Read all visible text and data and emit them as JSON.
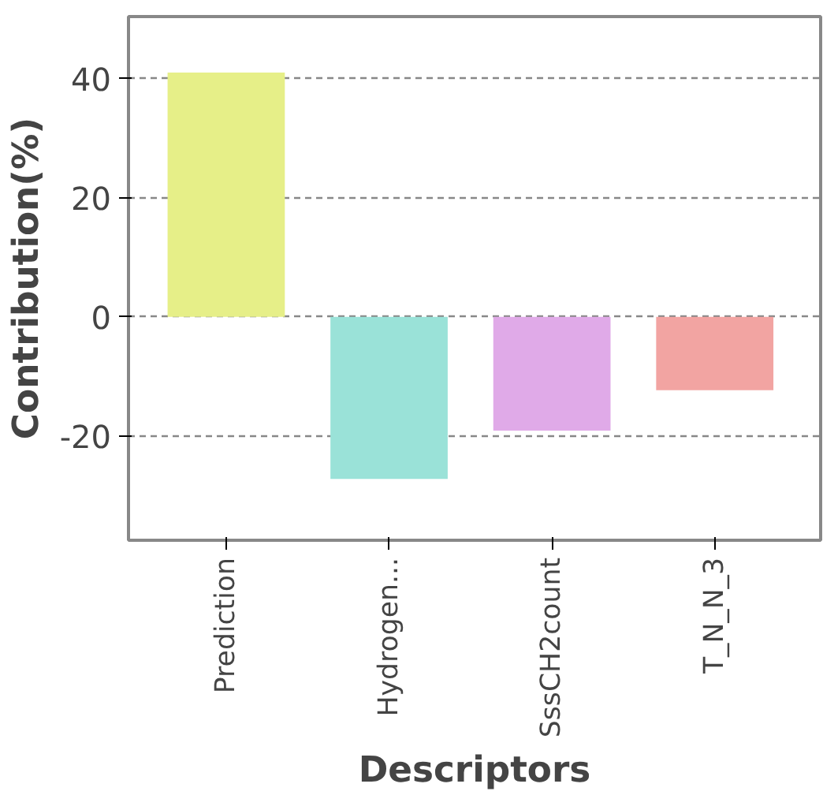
{
  "chart_data": {
    "type": "bar",
    "xlabel": "Descriptors",
    "ylabel": "Contribution(%)",
    "categories": [
      "Prediction",
      "Hydrogen...",
      "SssCH2count",
      "T_N_N_3"
    ],
    "values": [
      41,
      -27.2,
      -19.1,
      -12.3
    ],
    "colors": [
      "#e6ef88",
      "#9ae2d8",
      "#e0aae8",
      "#f2a4a2"
    ],
    "ylim": [
      -37.5,
      50.4
    ],
    "yticks": [
      -20,
      0,
      20,
      40
    ],
    "grid": "y"
  }
}
